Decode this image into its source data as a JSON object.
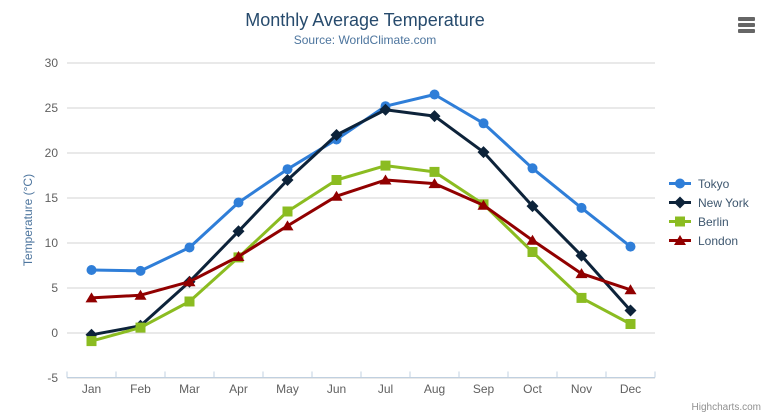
{
  "credits": "Highcharts.com",
  "export_menu": {
    "icon": "hamburger-menu-icon"
  },
  "chart_data": {
    "type": "line",
    "title": "Monthly Average Temperature",
    "subtitle": "Source: WorldClimate.com",
    "xlabel": "",
    "ylabel": "Temperature (°C)",
    "categories": [
      "Jan",
      "Feb",
      "Mar",
      "Apr",
      "May",
      "Jun",
      "Jul",
      "Aug",
      "Sep",
      "Oct",
      "Nov",
      "Dec"
    ],
    "series": [
      {
        "name": "Tokyo",
        "color": "#2f7ed8",
        "marker": "circle",
        "values": [
          7.0,
          6.9,
          9.5,
          14.5,
          18.2,
          21.5,
          25.2,
          26.5,
          23.3,
          18.3,
          13.9,
          9.6
        ]
      },
      {
        "name": "New York",
        "color": "#0d233a",
        "marker": "diamond",
        "values": [
          -0.2,
          0.8,
          5.7,
          11.3,
          17.0,
          22.0,
          24.8,
          24.1,
          20.1,
          14.1,
          8.6,
          2.5
        ]
      },
      {
        "name": "Berlin",
        "color": "#8bbc21",
        "marker": "square",
        "values": [
          -0.9,
          0.6,
          3.5,
          8.4,
          13.5,
          17.0,
          18.6,
          17.9,
          14.3,
          9.0,
          3.9,
          1.0
        ]
      },
      {
        "name": "London",
        "color": "#910000",
        "marker": "triangle",
        "values": [
          3.9,
          4.2,
          5.7,
          8.5,
          11.9,
          15.2,
          17.0,
          16.6,
          14.2,
          10.3,
          6.6,
          4.8
        ]
      }
    ],
    "ylim": [
      -5,
      30
    ],
    "tick_interval": 5,
    "grid": true,
    "legend_position": "right"
  },
  "colors": {
    "title": "#274b6d",
    "subtitle": "#4d759e",
    "axis_label": "#606060",
    "grid_line": "#d3d3d3",
    "axis_line": "#c0d0e0",
    "legend_text": "#3e576f",
    "credits": "#909090",
    "export_icon": "#666666"
  }
}
